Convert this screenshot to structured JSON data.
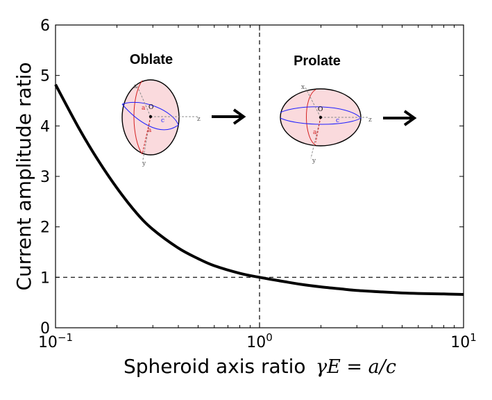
{
  "chart_data": {
    "type": "line",
    "title": "",
    "xlabel": "Spheroid axis ratio",
    "xlabel_math": "γE = a/c",
    "ylabel": "Current amplitude ratio",
    "xscale": "log",
    "xlim": [
      0.1,
      10
    ],
    "ylim": [
      0,
      6
    ],
    "x_ticks": [
      {
        "value": 0.1,
        "base": "10",
        "exp": "−1"
      },
      {
        "value": 1,
        "base": "10",
        "exp": "0"
      },
      {
        "value": 10,
        "base": "10",
        "exp": "1"
      }
    ],
    "y_ticks": [
      "0",
      "1",
      "2",
      "3",
      "4",
      "5",
      "6"
    ],
    "series": [
      {
        "x": [
          0.1,
          0.13,
          0.16,
          0.2,
          0.25,
          0.3,
          0.4,
          0.5,
          0.6,
          0.8,
          1.0,
          1.3,
          1.6,
          2.0,
          2.5,
          3.0,
          4.0,
          5.0,
          6.0,
          8.0,
          10.0
        ],
        "y": [
          4.82,
          3.96,
          3.35,
          2.77,
          2.27,
          1.95,
          1.58,
          1.37,
          1.23,
          1.08,
          1.0,
          0.92,
          0.86,
          0.81,
          0.77,
          0.74,
          0.71,
          0.69,
          0.68,
          0.67,
          0.66
        ]
      }
    ],
    "reference_lines": {
      "vertical_x": 1,
      "horizontal_y": 1,
      "style": "dashed"
    },
    "annotations": [
      {
        "text": "Oblate"
      },
      {
        "text": "Prolate"
      }
    ],
    "inset_labels": {
      "origin": "O",
      "semi_axis_a": "a",
      "semi_axis_c": "c",
      "axis_x": "x",
      "axis_y": "y",
      "axis_z": "z"
    },
    "colors": {
      "curve": "#000000",
      "spheroid_fill": "#fadadd",
      "equator": "#1f1fff",
      "meridian": "#d42020",
      "axis": "#8c8c8c"
    }
  }
}
